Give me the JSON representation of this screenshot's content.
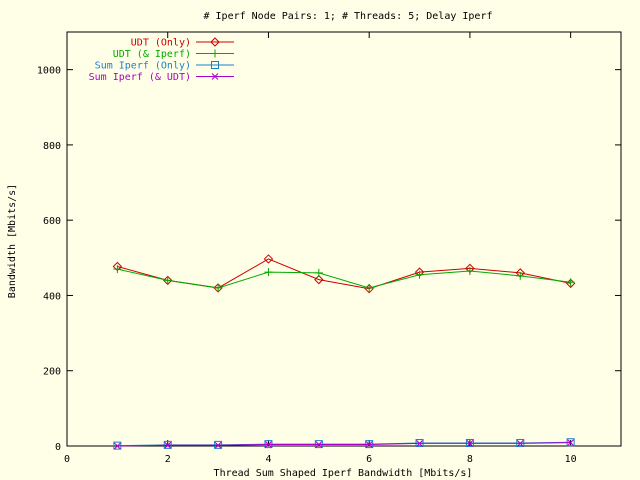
{
  "chart_data": {
    "type": "line",
    "title": "# Iperf Node Pairs: 1; # Threads: 5; Delay Iperf",
    "xlabel": "Thread Sum Shaped Iperf Bandwidth [Mbits/s]",
    "ylabel": "Bandwidth [Mbits/s]",
    "xlim": [
      0,
      11
    ],
    "ylim": [
      0,
      1100
    ],
    "x_ticks": [
      0,
      2,
      4,
      6,
      8,
      10
    ],
    "y_ticks": [
      0,
      200,
      400,
      600,
      800,
      1000
    ],
    "x": [
      1,
      2,
      3,
      4,
      5,
      6,
      7,
      8,
      9,
      10
    ],
    "legend_position": "top-left",
    "series": [
      {
        "name": "UDT (Only)",
        "color": "#cc0000",
        "marker": "diamond",
        "values": [
          477,
          440,
          420,
          497,
          442,
          418,
          462,
          472,
          460,
          432
        ]
      },
      {
        "name": "UDT (& Iperf)",
        "color": "#00aa00",
        "marker": "plus",
        "values": [
          470,
          440,
          420,
          462,
          460,
          420,
          455,
          465,
          452,
          435
        ]
      },
      {
        "name": "Sum Iperf (Only)",
        "color": "#1a7fcc",
        "marker": "square",
        "values": [
          1,
          3,
          3,
          5,
          5,
          5,
          8,
          8,
          8,
          10
        ]
      },
      {
        "name": "Sum Iperf (& UDT)",
        "color": "#aa00cc",
        "marker": "cross",
        "values": [
          0,
          2,
          2,
          4,
          4,
          4,
          7,
          7,
          7,
          9
        ]
      }
    ]
  }
}
